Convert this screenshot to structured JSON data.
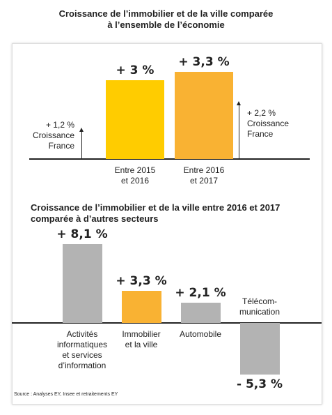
{
  "chart_data": [
    {
      "type": "bar",
      "title": "Croissance de l’immobilier et de la ville comparée\nà l’ensemble de l’économie",
      "categories": [
        "Entre 2015\net 2016",
        "Entre 2016\net 2017"
      ],
      "values": [
        3,
        3.3
      ],
      "value_labels": [
        "+ 3 %",
        "+ 3,3 %"
      ],
      "colors": [
        "#ffcc00",
        "#f9b233"
      ],
      "ylim": [
        0,
        4
      ],
      "annotations": [
        {
          "value": 1.2,
          "label": "+ 1,2 %",
          "text": "Croissance\nFrance"
        },
        {
          "value": 2.2,
          "label": "+ 2,2 %",
          "text": "Croissance\nFrance"
        }
      ]
    },
    {
      "type": "bar",
      "title": "Croissance de l’immobilier et de la ville entre 2016 et 2017\ncomparée à d’autres secteurs",
      "categories": [
        "Activités\ninformatiques\net services\nd’information",
        "Immobilier\net la ville",
        "Automobile",
        "Télécom-\nmunication"
      ],
      "values": [
        8.1,
        3.3,
        2.1,
        -5.3
      ],
      "value_labels": [
        "+ 8,1 %",
        "+ 3,3 %",
        "+ 2,1 %",
        "- 5,3 %"
      ],
      "colors": [
        "#b3b3b3",
        "#f9b233",
        "#b3b3b3",
        "#b3b3b3"
      ],
      "ylim": [
        -6,
        9
      ]
    }
  ],
  "source": "Source : Analyses EY, Insee et retraitements EY"
}
